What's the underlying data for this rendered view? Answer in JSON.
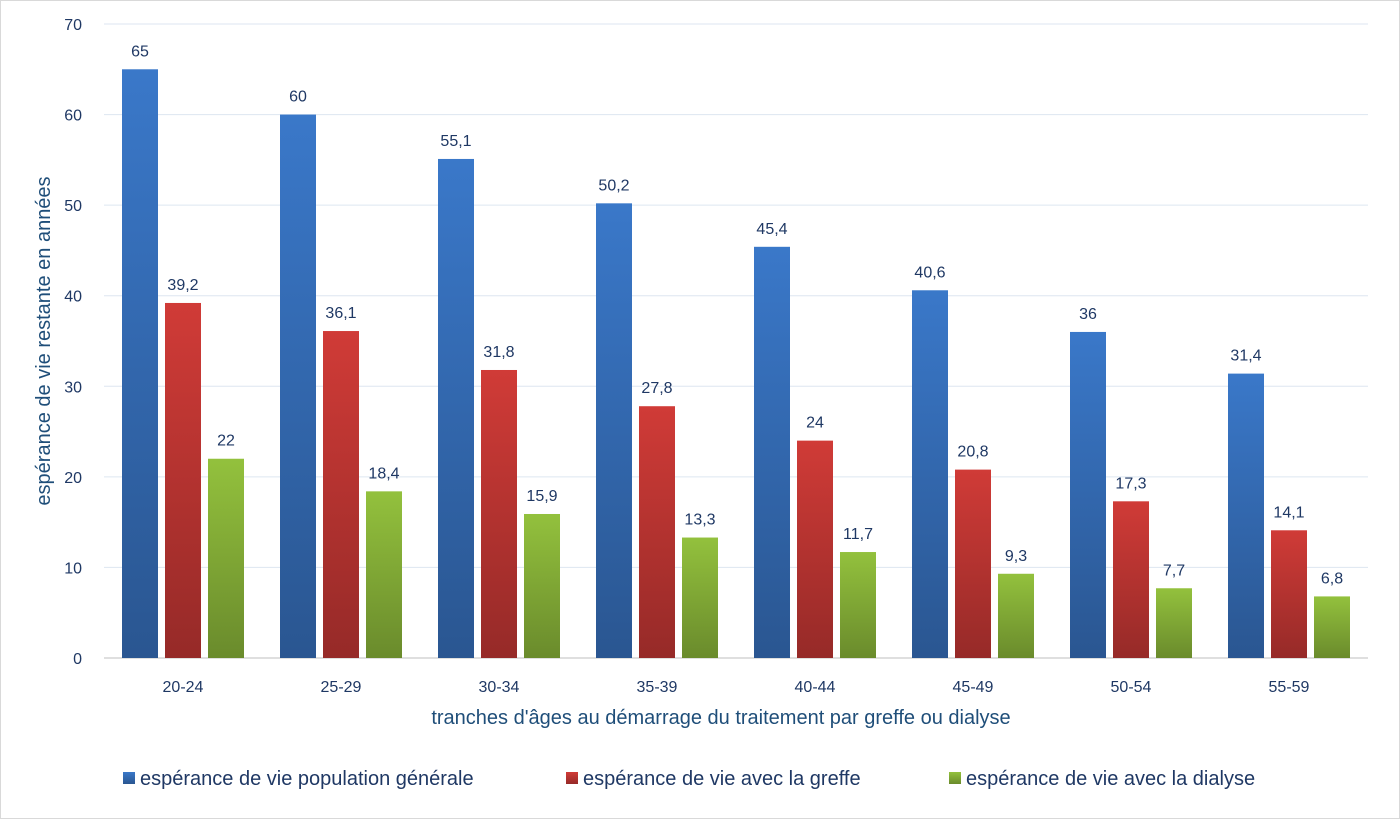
{
  "chart_data": {
    "type": "bar",
    "xlabel": "tranches d'âges au démarrage du traitement par greffe ou dialyse",
    "ylabel": "espérance de vie restante en années",
    "ylim": [
      0,
      70
    ],
    "yticks": [
      "0",
      "10",
      "20",
      "30",
      "40",
      "50",
      "60",
      "70"
    ],
    "grid": true,
    "legend_position": "bottom",
    "categories": [
      "20-24",
      "25-29",
      "30-34",
      "35-39",
      "40-44",
      "45-49",
      "50-54",
      "55-59"
    ],
    "series": [
      {
        "name": "espérance de vie population générale",
        "color": "#3a78c9",
        "values": [
          65,
          60,
          55.1,
          50.2,
          45.4,
          40.6,
          36,
          31.4
        ],
        "labels": [
          "65",
          "60",
          "55,1",
          "50,2",
          "45,4",
          "40,6",
          "36",
          "31,4"
        ]
      },
      {
        "name": "espérance de vie avec la greffe",
        "color": "#d03b37",
        "values": [
          39.2,
          36.1,
          31.8,
          27.8,
          24,
          20.8,
          17.3,
          14.1
        ],
        "labels": [
          "39,2",
          "36,1",
          "31,8",
          "27,8",
          "24",
          "20,8",
          "17,3",
          "14,1"
        ]
      },
      {
        "name": "espérance de vie avec la dialyse",
        "color": "#93c13d",
        "values": [
          22,
          18.4,
          15.9,
          13.3,
          11.7,
          9.3,
          7.7,
          6.8
        ],
        "labels": [
          "22",
          "18,4",
          "15,9",
          "13,3",
          "11,7",
          "9,3",
          "7,7",
          "6,8"
        ]
      }
    ]
  }
}
